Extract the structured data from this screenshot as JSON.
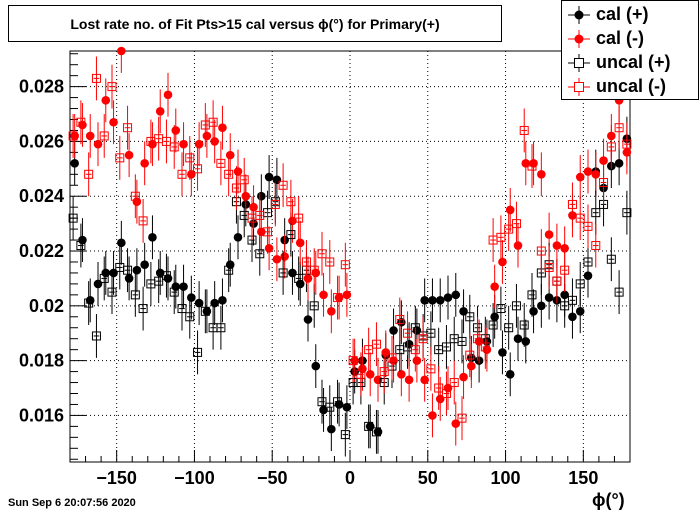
{
  "title": "Lost rate no. of Fit Pts>15 cal versus ϕ(°) for Primary(+)",
  "xlabel": "ϕ(°)",
  "timestamp": "Sun Sep  6 20:07:56 2020",
  "chart_data": {
    "type": "scatter",
    "title": "Lost rate no. of Fit Pts>15 cal versus ϕ(°) for Primary(+)",
    "xlabel": "ϕ(°)",
    "ylabel": "",
    "xlim": [
      -180,
      180
    ],
    "ylim": [
      0.0143,
      0.0293
    ],
    "xticks": [
      -150,
      -100,
      -50,
      0,
      50,
      100,
      150
    ],
    "yticks": [
      0.016,
      0.018,
      0.02,
      0.022,
      0.024,
      0.026,
      0.028
    ],
    "ytick_labels": [
      "0.016",
      "0.018",
      "0.02",
      "0.022",
      "0.024",
      "0.026",
      "0.028"
    ],
    "grid": true,
    "legend_position": "top-right",
    "series": [
      {
        "name": "cal (+)",
        "marker": "filled-circle",
        "color": "#000000",
        "x": [
          -177,
          -172,
          -167,
          -162,
          -157,
          -152,
          -147,
          -142,
          -137,
          -132,
          -127,
          -122,
          -117,
          -112,
          -107,
          -102,
          -97,
          -92,
          -87,
          -82,
          -77,
          -72,
          -67,
          -62,
          -57,
          -52,
          -47,
          -42,
          -37,
          -32,
          -27,
          -22,
          -17,
          -12,
          -7,
          -2,
          3,
          8,
          13,
          18,
          23,
          28,
          33,
          38,
          43,
          48,
          53,
          58,
          63,
          68,
          73,
          78,
          83,
          88,
          93,
          98,
          103,
          108,
          113,
          118,
          123,
          128,
          133,
          138,
          143,
          148,
          153,
          158,
          163,
          168,
          173,
          178
        ],
        "y": [
          0.0252,
          0.0224,
          0.0202,
          0.0208,
          0.0212,
          0.0212,
          0.0223,
          0.021,
          0.0213,
          0.0215,
          0.0225,
          0.0212,
          0.021,
          0.0207,
          0.0207,
          0.0203,
          0.0201,
          0.0198,
          0.0201,
          0.0202,
          0.0215,
          0.0225,
          0.0237,
          0.023,
          0.024,
          0.0247,
          0.0246,
          0.0224,
          0.0212,
          0.0208,
          0.0195,
          0.0178,
          0.0162,
          0.0155,
          0.0164,
          0.0163,
          0.0176,
          0.018,
          0.0156,
          0.0154,
          0.0182,
          0.0191,
          0.0194,
          0.0186,
          0.0191,
          0.0202,
          0.0202,
          0.0202,
          0.0203,
          0.0204,
          0.0198,
          0.0181,
          0.018,
          0.0187,
          0.0196,
          0.0183,
          0.0175,
          0.0188,
          0.0187,
          0.0198,
          0.02,
          0.0203,
          0.0202,
          0.0204,
          0.0196,
          0.0198,
          0.0211,
          0.0249,
          0.0243,
          0.0251,
          0.0252,
          0.0261
        ],
        "err": [
          0.0008,
          0.0008,
          0.0008,
          0.0008,
          0.0008,
          0.0008,
          0.0008,
          0.0008,
          0.0008,
          0.0008,
          0.0008,
          0.0008,
          0.0008,
          0.0008,
          0.0008,
          0.0008,
          0.0008,
          0.0008,
          0.0008,
          0.0008,
          0.0008,
          0.0008,
          0.0008,
          0.0008,
          0.0008,
          0.0008,
          0.0008,
          0.0008,
          0.0008,
          0.0008,
          0.0008,
          0.0008,
          0.0008,
          0.0008,
          0.0008,
          0.0008,
          0.0008,
          0.0008,
          0.0008,
          0.0008,
          0.0008,
          0.0008,
          0.0008,
          0.0008,
          0.0008,
          0.0008,
          0.0008,
          0.0008,
          0.0008,
          0.0008,
          0.0008,
          0.0008,
          0.0008,
          0.0008,
          0.0008,
          0.0008,
          0.0008,
          0.0008,
          0.0008,
          0.0008,
          0.0008,
          0.0008,
          0.0008,
          0.0008,
          0.0008,
          0.0008,
          0.0008,
          0.0008,
          0.0008,
          0.0008,
          0.0008,
          0.0008
        ]
      },
      {
        "name": "cal (-)",
        "marker": "filled-circle",
        "color": "#ff0000",
        "x": [
          -177,
          -172,
          -167,
          -162,
          -157,
          -152,
          -147,
          -142,
          -137,
          -132,
          -127,
          -122,
          -117,
          -112,
          -107,
          -102,
          -97,
          -92,
          -87,
          -82,
          -77,
          -72,
          -67,
          -62,
          -57,
          -52,
          -47,
          -42,
          -37,
          -32,
          -27,
          -22,
          -17,
          -12,
          -7,
          -2,
          3,
          8,
          13,
          18,
          23,
          28,
          33,
          38,
          43,
          48,
          53,
          58,
          63,
          68,
          73,
          78,
          83,
          88,
          93,
          98,
          103,
          108,
          113,
          118,
          123,
          128,
          133,
          138,
          143,
          148,
          153,
          158,
          163,
          168,
          173,
          178
        ],
        "y": [
          0.0262,
          0.0266,
          0.0262,
          0.0259,
          0.0275,
          0.0267,
          0.0293,
          0.0255,
          0.0238,
          0.0252,
          0.0259,
          0.0271,
          0.0277,
          0.0264,
          0.0259,
          0.0248,
          0.0259,
          0.0262,
          0.026,
          0.0265,
          0.0255,
          0.0249,
          0.024,
          0.0236,
          0.0227,
          0.0221,
          0.0217,
          0.0218,
          0.0231,
          0.0223,
          0.021,
          0.0212,
          0.0204,
          0.0198,
          0.0203,
          0.0204,
          0.018,
          0.0177,
          0.0175,
          0.0173,
          0.0183,
          0.018,
          0.0175,
          0.0173,
          0.018,
          0.0173,
          0.016,
          0.0166,
          0.017,
          0.0157,
          0.0174,
          0.0178,
          0.0187,
          0.0184,
          0.0207,
          0.0216,
          0.0235,
          0.0222,
          0.0252,
          0.0252,
          0.0248,
          0.0226,
          0.0222,
          0.0221,
          0.0233,
          0.0247,
          0.0249,
          0.0248,
          0.0253,
          0.0262,
          0.0275,
          0.0256
        ]
      },
      {
        "name": "uncal (+)",
        "marker": "open-square",
        "color": "#000000",
        "x": [
          -178,
          -173,
          -168,
          -163,
          -158,
          -153,
          -148,
          -143,
          -138,
          -133,
          -128,
          -123,
          -118,
          -113,
          -108,
          -103,
          -98,
          -93,
          -88,
          -83,
          -78,
          -73,
          -68,
          -63,
          -58,
          -53,
          -48,
          -43,
          -38,
          -33,
          -28,
          -23,
          -18,
          -13,
          -8,
          -3,
          2,
          7,
          12,
          17,
          22,
          27,
          32,
          37,
          42,
          47,
          52,
          57,
          62,
          67,
          72,
          77,
          82,
          87,
          92,
          97,
          102,
          107,
          112,
          117,
          123,
          128,
          133,
          138,
          143,
          148,
          153,
          158,
          163,
          168,
          173,
          178
        ],
        "y": [
          0.0232,
          0.0222,
          0.0201,
          0.0189,
          0.021,
          0.0205,
          0.0214,
          0.0213,
          0.0204,
          0.0199,
          0.0208,
          0.0209,
          0.0211,
          0.0205,
          0.0199,
          0.0196,
          0.0183,
          0.0198,
          0.0192,
          0.0192,
          0.0213,
          0.0238,
          0.0233,
          0.0224,
          0.0219,
          0.0234,
          0.0238,
          0.0212,
          0.0226,
          0.021,
          0.0213,
          0.02,
          0.0165,
          0.0163,
          0.0165,
          0.0153,
          0.0172,
          0.0172,
          0.0156,
          0.0154,
          0.0172,
          0.0178,
          0.0184,
          0.0185,
          0.0192,
          0.0189,
          0.019,
          0.0184,
          0.0185,
          0.0188,
          0.0187,
          0.0196,
          0.0192,
          0.0188,
          0.0193,
          0.0199,
          0.0192,
          0.02,
          0.0193,
          0.0204,
          0.0212,
          0.0215,
          0.0209,
          0.02,
          0.0202,
          0.0208,
          0.0216,
          0.0234,
          0.0237,
          0.0217,
          0.0205,
          0.0234
        ]
      },
      {
        "name": "uncal (-)",
        "marker": "open-square",
        "color": "#ff0000",
        "x": [
          -178,
          -173,
          -168,
          -163,
          -158,
          -153,
          -148,
          -143,
          -138,
          -133,
          -128,
          -123,
          -118,
          -113,
          -108,
          -103,
          -98,
          -93,
          -88,
          -83,
          -78,
          -73,
          -68,
          -63,
          -58,
          -53,
          -48,
          -43,
          -38,
          -33,
          -28,
          -23,
          -18,
          -13,
          -8,
          -3,
          2,
          7,
          12,
          17,
          22,
          27,
          32,
          37,
          42,
          47,
          52,
          57,
          62,
          67,
          72,
          77,
          82,
          87,
          92,
          97,
          102,
          107,
          112,
          117,
          123,
          128,
          133,
          138,
          143,
          148,
          153,
          158,
          163,
          168,
          173,
          178
        ],
        "y": [
          0.0262,
          0.0267,
          0.0248,
          0.0283,
          0.0262,
          0.028,
          0.0254,
          0.0265,
          0.024,
          0.0231,
          0.026,
          0.0261,
          0.026,
          0.0258,
          0.0248,
          0.0254,
          0.025,
          0.0266,
          0.0267,
          0.0252,
          0.0248,
          0.0243,
          0.0246,
          0.0232,
          0.0233,
          0.0227,
          0.0237,
          0.0244,
          0.0238,
          0.0232,
          0.0216,
          0.0213,
          0.0219,
          0.0216,
          0.0203,
          0.0215,
          0.018,
          0.0175,
          0.0184,
          0.0186,
          0.0176,
          0.0181,
          0.0195,
          0.019,
          0.0184,
          0.0188,
          0.0177,
          0.017,
          0.0168,
          0.0172,
          0.0159,
          0.0182,
          0.0188,
          0.0185,
          0.0224,
          0.0225,
          0.0228,
          0.023,
          0.0264,
          0.0251,
          0.022,
          0.0214,
          0.0209,
          0.0213,
          0.0237,
          0.0232,
          0.0229,
          0.0222,
          0.0245,
          0.0258,
          0.0265,
          0.0259
        ]
      }
    ]
  },
  "legend": [
    {
      "label": "cal (+)",
      "color": "#000000",
      "marker": "filled-circle"
    },
    {
      "label": "cal (-)",
      "color": "#ff0000",
      "marker": "filled-circle"
    },
    {
      "label": "uncal (+)",
      "color": "#000000",
      "marker": "open-square"
    },
    {
      "label": "uncal (-)",
      "color": "#ff0000",
      "marker": "open-square"
    }
  ]
}
